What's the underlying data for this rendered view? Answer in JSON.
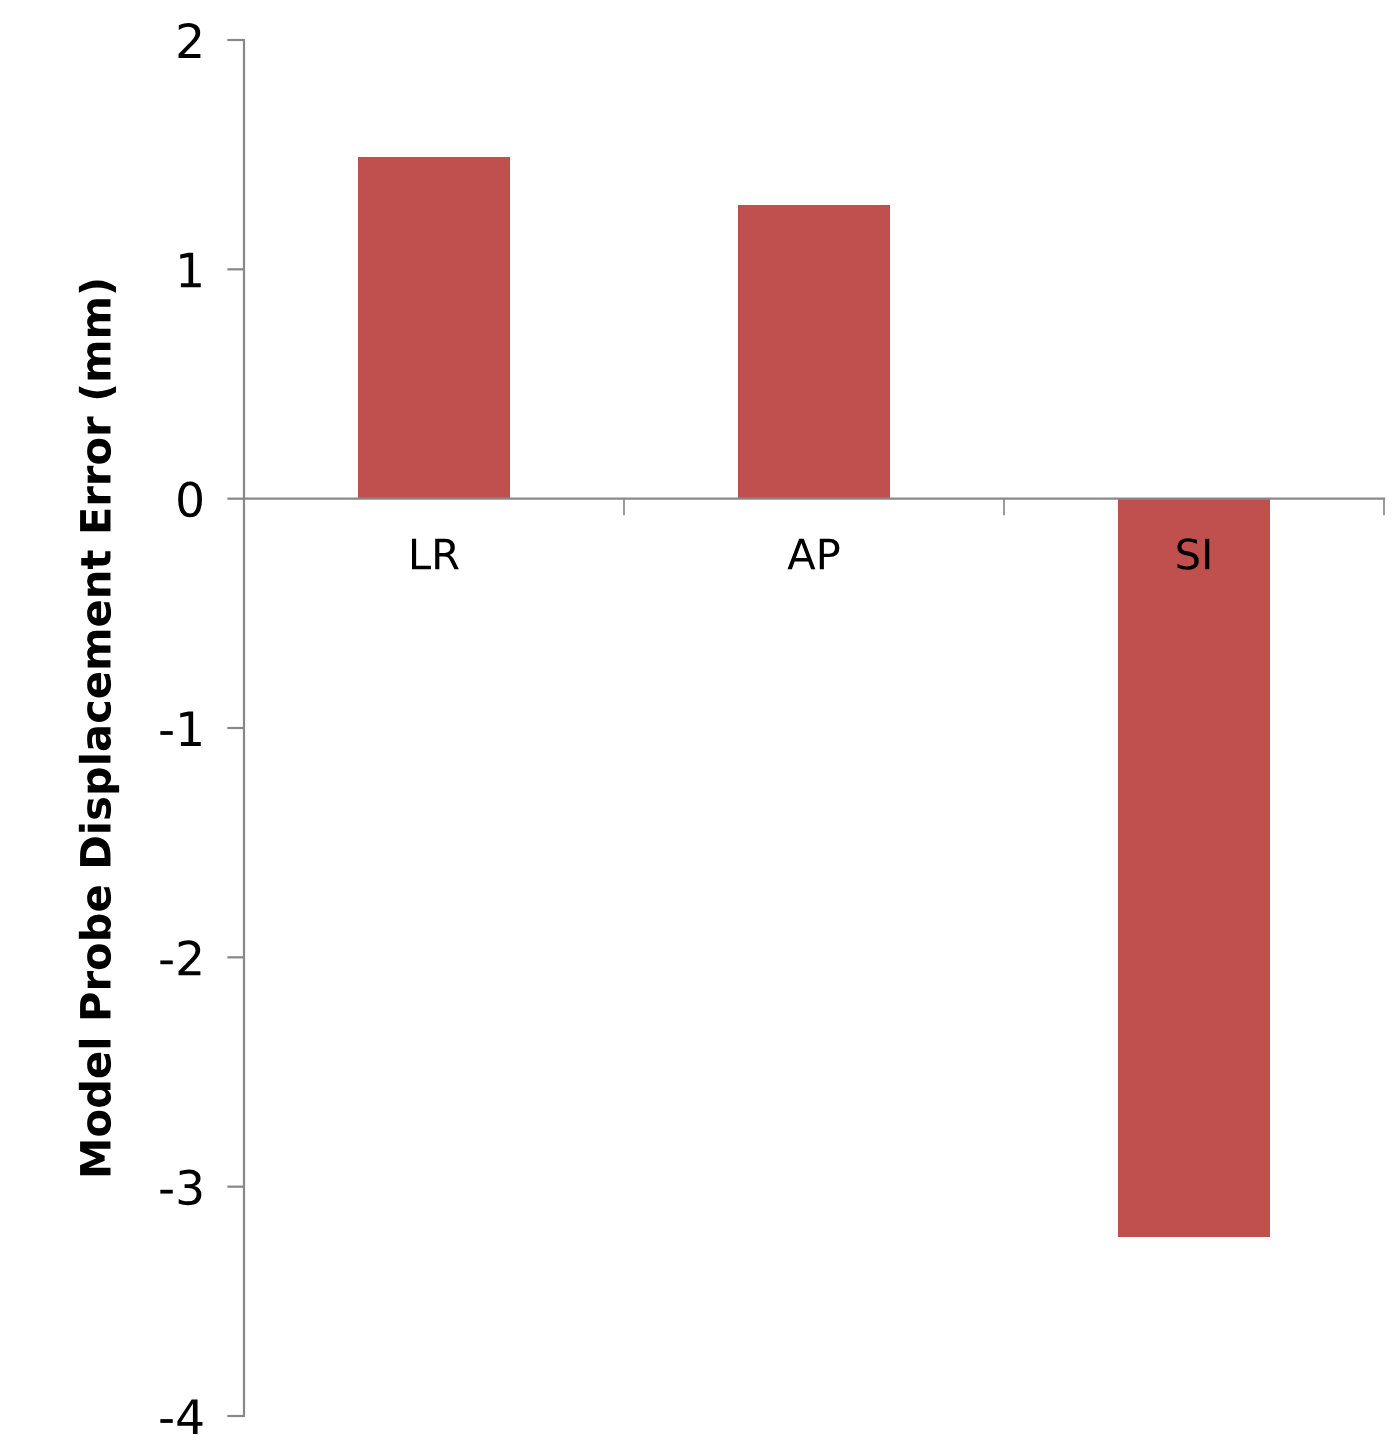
{
  "chart_data": {
    "type": "bar",
    "ylabel": "Model Probe Displacement Error (mm)",
    "categories": [
      "LR",
      "AP",
      "SI"
    ],
    "values": [
      1.49,
      1.28,
      -3.22
    ],
    "color": "#c0504d",
    "ylim": [
      -4,
      2
    ],
    "yticks": [
      {
        "value": -4,
        "label": "-4"
      },
      {
        "value": -3,
        "label": "-3"
      },
      {
        "value": -2,
        "label": "-2"
      },
      {
        "value": -1,
        "label": "-1"
      },
      0,
      1,
      2
    ],
    "grid": false,
    "legend": false
  }
}
